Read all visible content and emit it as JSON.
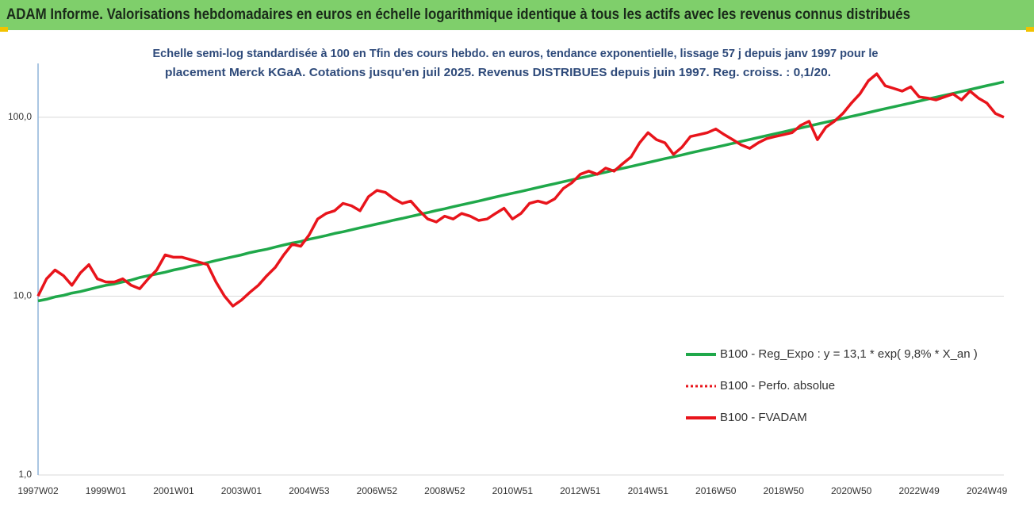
{
  "chart_data": {
    "type": "line",
    "title": "ADAM Informe. Valorisations hebdomadaires en euros en échelle logarithmique identique à tous les actifs avec les revenus connus distribués",
    "subtitle": [
      "Echelle semi-log standardisée à 100 en Tfin des cours hebdo. en euros, tendance exponentielle, lissage 57 j depuis janv 1997 pour le",
      "placement Merck KGaA. Cotations jusqu'en juil 2025. Revenus DISTRIBUES depuis juin 1997. Reg. croiss. : 0,1/20."
    ],
    "log_scale": true,
    "grid": true,
    "legend": "right",
    "ylim": [
      1,
      200
    ],
    "yticks": [
      {
        "value": 1,
        "label": "1,0"
      },
      {
        "value": 10,
        "label": "10,0"
      },
      {
        "value": 100,
        "label": "100,0"
      }
    ],
    "categories": [
      "1997W02",
      null,
      null,
      null,
      null,
      null,
      null,
      null,
      "1999W01",
      null,
      null,
      null,
      null,
      null,
      null,
      null,
      "2001W01",
      null,
      null,
      null,
      null,
      null,
      null,
      null,
      "2003W01",
      null,
      null,
      null,
      null,
      null,
      null,
      null,
      "2004W53",
      null,
      null,
      null,
      null,
      null,
      null,
      null,
      "2006W52",
      null,
      null,
      null,
      null,
      null,
      null,
      null,
      "2008W52",
      null,
      null,
      null,
      null,
      null,
      null,
      null,
      "2010W51",
      null,
      null,
      null,
      null,
      null,
      null,
      null,
      "2012W51",
      null,
      null,
      null,
      null,
      null,
      null,
      null,
      "2014W51",
      null,
      null,
      null,
      null,
      null,
      null,
      null,
      "2016W50",
      null,
      null,
      null,
      null,
      null,
      null,
      null,
      "2018W50",
      null,
      null,
      null,
      null,
      null,
      null,
      null,
      "2020W50",
      null,
      null,
      null,
      null,
      null,
      null,
      null,
      "2022W49",
      null,
      null,
      null,
      null,
      null,
      null,
      null,
      "2024W49",
      null,
      null
    ],
    "series": [
      {
        "name": "B100 - Reg_Expo : y = 13,1 * exp( 9,8% *  X_an )",
        "color": "#1fa84a",
        "style": "solid",
        "values": [
          9.4,
          9.6,
          9.9,
          10.1,
          10.4,
          10.6,
          10.9,
          11.2,
          11.5,
          11.7,
          12.0,
          12.3,
          12.7,
          13.0,
          13.3,
          13.6,
          14.0,
          14.3,
          14.7,
          15.0,
          15.4,
          15.8,
          16.2,
          16.6,
          17.0,
          17.5,
          17.9,
          18.3,
          18.8,
          19.3,
          19.8,
          20.2,
          20.8,
          21.3,
          21.8,
          22.4,
          22.9,
          23.5,
          24.1,
          24.7,
          25.3,
          25.9,
          26.6,
          27.2,
          27.9,
          28.6,
          29.3,
          30.1,
          30.8,
          31.6,
          32.4,
          33.2,
          34.0,
          34.9,
          35.8,
          36.7,
          37.6,
          38.5,
          39.5,
          40.5,
          41.5,
          42.5,
          43.6,
          44.7,
          45.8,
          46.9,
          48.1,
          49.3,
          50.6,
          51.8,
          53.1,
          54.5,
          55.8,
          57.2,
          58.7,
          60.1,
          61.6,
          63.2,
          64.8,
          66.4,
          68.0,
          69.7,
          71.5,
          73.3,
          75.1,
          77.0,
          78.9,
          80.9,
          82.9,
          85.0,
          87.1,
          89.3,
          91.6,
          93.9,
          96.2,
          98.6,
          101.1,
          103.6,
          106.2,
          108.9,
          111.6,
          114.4,
          117.3,
          120.2,
          123.2,
          126.3,
          129.5,
          132.7,
          136.0,
          139.4,
          142.9,
          146.5,
          150.2,
          153.9,
          157.8
        ]
      },
      {
        "name": "B100 - Perfo. absolue",
        "color": "#e8141b",
        "style": "dotted",
        "values": [
          10,
          12.5,
          14,
          13,
          11.5,
          13.5,
          15,
          12.5,
          12,
          12,
          12.5,
          11.5,
          11,
          12.5,
          14,
          17,
          16.5,
          16.5,
          16,
          15.5,
          15,
          12,
          10,
          8.8,
          9.5,
          10.5,
          11.5,
          13,
          14.5,
          17,
          19.5,
          19,
          22,
          27,
          29,
          30,
          33,
          32,
          30,
          36,
          39,
          38,
          35,
          33,
          34,
          30,
          27,
          26,
          28,
          27,
          29,
          28,
          26.5,
          27,
          29,
          31,
          27,
          29,
          33,
          34,
          33,
          35,
          40,
          43,
          48,
          50,
          48,
          52,
          50,
          55,
          60,
          72,
          82,
          75,
          72,
          62,
          68,
          78,
          80,
          82,
          86,
          80,
          75,
          70,
          67,
          72,
          76,
          78,
          80,
          82,
          90,
          95,
          75,
          88,
          95,
          105,
          120,
          135,
          160,
          175,
          150,
          145,
          140,
          148,
          130,
          128,
          125,
          130,
          135,
          125,
          140,
          128,
          120,
          105,
          100
        ]
      },
      {
        "name": "B100 - FVADAM",
        "color": "#e8141b",
        "style": "solid",
        "values": [
          10,
          12.5,
          14,
          13,
          11.5,
          13.5,
          15,
          12.5,
          12,
          12,
          12.5,
          11.5,
          11,
          12.5,
          14,
          17,
          16.5,
          16.5,
          16,
          15.5,
          15,
          12,
          10,
          8.8,
          9.5,
          10.5,
          11.5,
          13,
          14.5,
          17,
          19.5,
          19,
          22,
          27,
          29,
          30,
          33,
          32,
          30,
          36,
          39,
          38,
          35,
          33,
          34,
          30,
          27,
          26,
          28,
          27,
          29,
          28,
          26.5,
          27,
          29,
          31,
          27,
          29,
          33,
          34,
          33,
          35,
          40,
          43,
          48,
          50,
          48,
          52,
          50,
          55,
          60,
          72,
          82,
          75,
          72,
          62,
          68,
          78,
          80,
          82,
          86,
          80,
          75,
          70,
          67,
          72,
          76,
          78,
          80,
          82,
          90,
          95,
          75,
          88,
          95,
          105,
          120,
          135,
          160,
          175,
          150,
          145,
          140,
          148,
          130,
          128,
          125,
          130,
          135,
          125,
          140,
          128,
          120,
          105,
          100
        ]
      }
    ]
  }
}
